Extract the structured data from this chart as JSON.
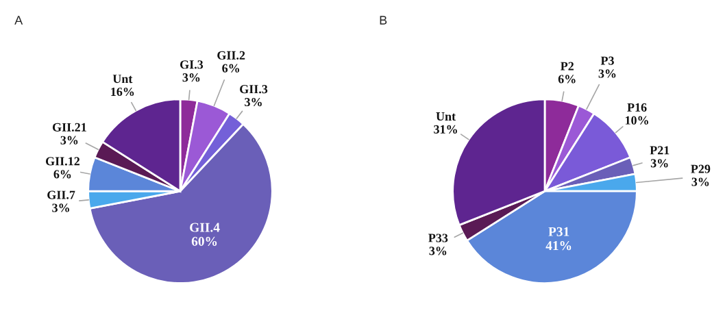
{
  "chart_data": [
    {
      "type": "pie",
      "title": "A",
      "categories": [
        "GI.3",
        "GII.2",
        "GII.3",
        "GII.4",
        "GII.7",
        "GII.12",
        "GII.21",
        "Unt"
      ],
      "values": [
        3,
        6,
        3,
        60,
        3,
        6,
        3,
        16
      ],
      "value_labels": [
        "3%",
        "6%",
        "3%",
        "60%",
        "3%",
        "6%",
        "3%",
        "16%"
      ],
      "colors": [
        "#8e2b9a",
        "#9b59d6",
        "#7460d8",
        "#6a5fb8",
        "#4aa8ec",
        "#5b86d9",
        "#5a1a55",
        "#5e2590"
      ]
    },
    {
      "type": "pie",
      "title": "B",
      "categories": [
        "P2",
        "P3",
        "P16",
        "P21",
        "P29",
        "P31",
        "P33",
        "Unt"
      ],
      "values": [
        6,
        3,
        10,
        3,
        3,
        41,
        3,
        31
      ],
      "value_labels": [
        "6%",
        "3%",
        "10%",
        "3%",
        "3%",
        "41%",
        "3%",
        "31%"
      ],
      "colors": [
        "#8e2b9a",
        "#9b59d6",
        "#7a5ad8",
        "#6a5fb8",
        "#4aa8ec",
        "#5b86d9",
        "#5a1a55",
        "#5e2590"
      ]
    }
  ]
}
